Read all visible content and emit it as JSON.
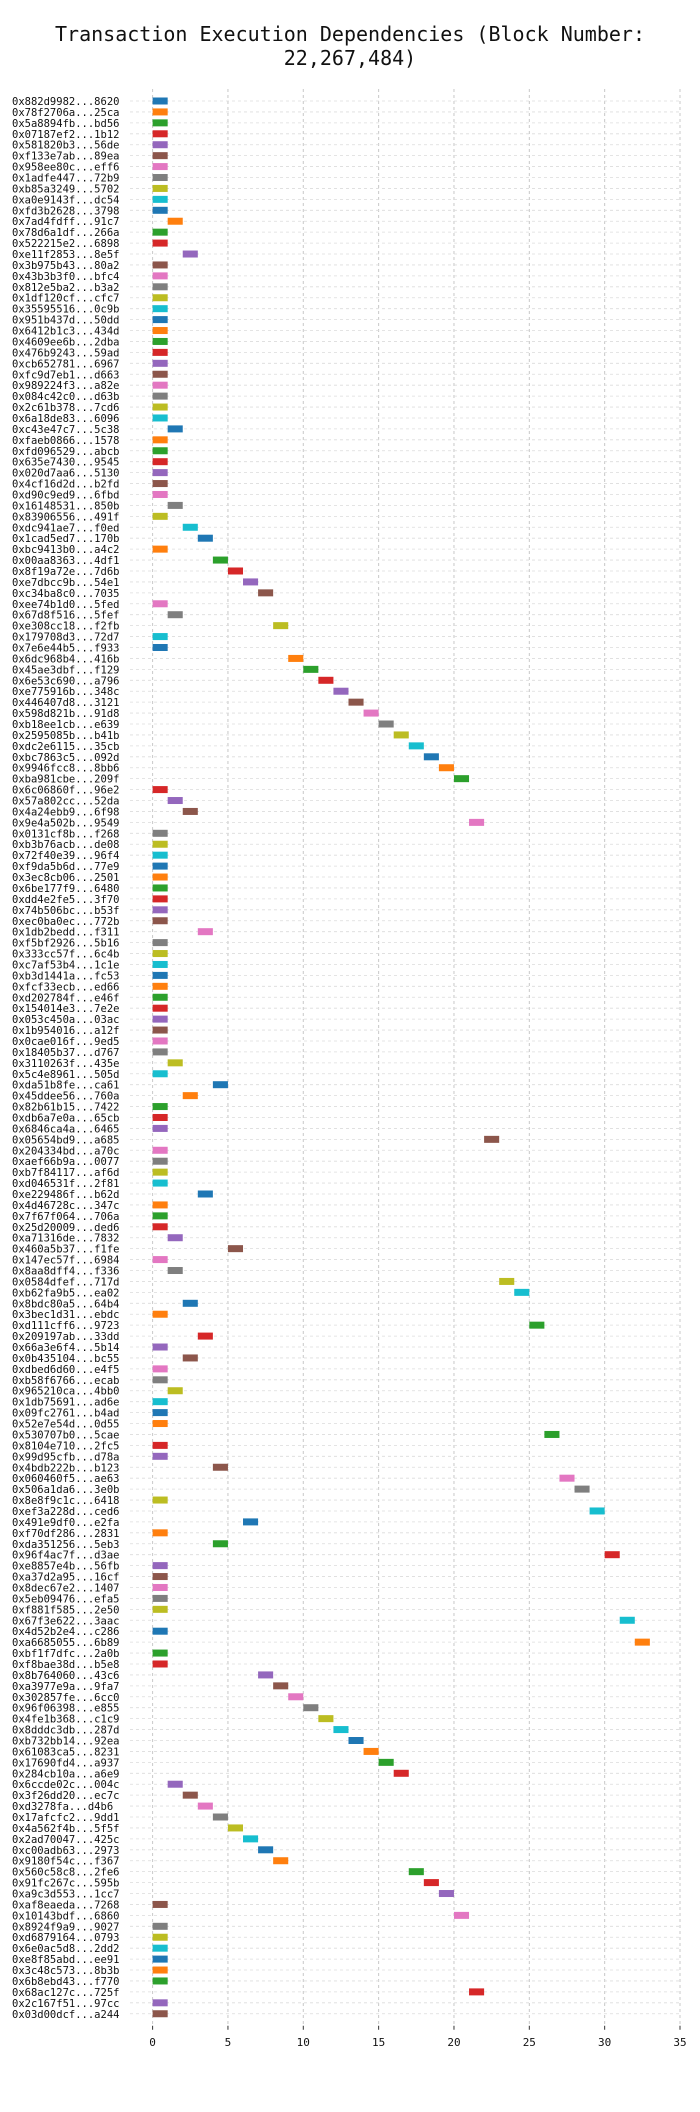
{
  "chart_data": {
    "type": "gantt",
    "title": "Transaction Execution Dependencies (Block Number: 22,267,484)",
    "xlabel": "",
    "ylabel": "",
    "xlim": [
      -1.5,
      35
    ],
    "xticks": [
      0,
      5,
      10,
      15,
      20,
      25,
      30,
      35
    ],
    "grid": true,
    "bar_duration": 1,
    "palette": [
      "#1f77b4",
      "#ff7f0e",
      "#2ca02c",
      "#d62728",
      "#9467bd",
      "#8c564b",
      "#e377c2",
      "#7f7f7f",
      "#bcbd22",
      "#17becf"
    ],
    "transactions": [
      {
        "label": "0x882d9982...8620",
        "start": 0
      },
      {
        "label": "0x78f2706a...25ca",
        "start": 0
      },
      {
        "label": "0x5a8894fb...bd56",
        "start": 0
      },
      {
        "label": "0x07187ef2...1b12",
        "start": 0
      },
      {
        "label": "0x581820b3...56de",
        "start": 0
      },
      {
        "label": "0xf133e7ab...89ea",
        "start": 0
      },
      {
        "label": "0x958ee80c...eff6",
        "start": 0
      },
      {
        "label": "0x1adfe447...72b9",
        "start": 0
      },
      {
        "label": "0xb85a3249...5702",
        "start": 0
      },
      {
        "label": "0xa0e9143f...dc54",
        "start": 0
      },
      {
        "label": "0xfd3b2628...3798",
        "start": 0
      },
      {
        "label": "0x7ad4fdff...91c7",
        "start": 1
      },
      {
        "label": "0x78d6a1df...266a",
        "start": 0
      },
      {
        "label": "0x522215e2...6898",
        "start": 0
      },
      {
        "label": "0xe11f2853...8e5f",
        "start": 2
      },
      {
        "label": "0x3b975b43...80a2",
        "start": 0
      },
      {
        "label": "0x43b3b3f0...bfc4",
        "start": 0
      },
      {
        "label": "0x812e5ba2...b3a2",
        "start": 0
      },
      {
        "label": "0x1df120cf...cfc7",
        "start": 0
      },
      {
        "label": "0x35595516...0c9b",
        "start": 0
      },
      {
        "label": "0x951b437d...50dd",
        "start": 0
      },
      {
        "label": "0x6412b1c3...434d",
        "start": 0
      },
      {
        "label": "0x4609ee6b...2dba",
        "start": 0
      },
      {
        "label": "0x476b9243...59ad",
        "start": 0
      },
      {
        "label": "0xcb652781...6967",
        "start": 0
      },
      {
        "label": "0xfc9d7eb1...d663",
        "start": 0
      },
      {
        "label": "0x989224f3...a82e",
        "start": 0
      },
      {
        "label": "0x084c42c0...d63b",
        "start": 0
      },
      {
        "label": "0x2c61b378...7cd6",
        "start": 0
      },
      {
        "label": "0x6a18de83...6096",
        "start": 0
      },
      {
        "label": "0xc43e47c7...5c38",
        "start": 1
      },
      {
        "label": "0xfaeb0866...1578",
        "start": 0
      },
      {
        "label": "0xfd096529...abcb",
        "start": 0
      },
      {
        "label": "0x635e7430...9545",
        "start": 0
      },
      {
        "label": "0x020d7aa6...5130",
        "start": 0
      },
      {
        "label": "0x4cf16d2d...b2fd",
        "start": 0
      },
      {
        "label": "0xd90c9ed9...6fbd",
        "start": 0
      },
      {
        "label": "0x16148531...850b",
        "start": 1
      },
      {
        "label": "0x83906556...491f",
        "start": 0
      },
      {
        "label": "0xdc941ae7...f0ed",
        "start": 2
      },
      {
        "label": "0x1cad5ed7...170b",
        "start": 3
      },
      {
        "label": "0xbc9413b0...a4c2",
        "start": 0
      },
      {
        "label": "0x00aa8363...4df1",
        "start": 4
      },
      {
        "label": "0x8f19a72e...7d6b",
        "start": 5
      },
      {
        "label": "0xe7dbcc9b...54e1",
        "start": 6
      },
      {
        "label": "0xc34ba8c0...7035",
        "start": 7
      },
      {
        "label": "0xee74b1d0...5fed",
        "start": 0
      },
      {
        "label": "0x67d8f516...5fef",
        "start": 1
      },
      {
        "label": "0xe308cc18...f2fb",
        "start": 8
      },
      {
        "label": "0x179708d3...72d7",
        "start": 0
      },
      {
        "label": "0x7e6e44b5...f933",
        "start": 0
      },
      {
        "label": "0x6dc968b4...416b",
        "start": 9
      },
      {
        "label": "0x45ae3dbf...f129",
        "start": 10
      },
      {
        "label": "0x6e53c690...a796",
        "start": 11
      },
      {
        "label": "0xe775916b...348c",
        "start": 12
      },
      {
        "label": "0x446407d8...3121",
        "start": 13
      },
      {
        "label": "0x598d821b...91d8",
        "start": 14
      },
      {
        "label": "0xb18ee1cb...e639",
        "start": 15
      },
      {
        "label": "0x2595085b...b41b",
        "start": 16
      },
      {
        "label": "0xdc2e6115...35cb",
        "start": 17
      },
      {
        "label": "0xbc7863c5...092d",
        "start": 18
      },
      {
        "label": "0x9946fcc8...8bb6",
        "start": 19
      },
      {
        "label": "0xba981cbe...209f",
        "start": 20
      },
      {
        "label": "0x6c06860f...96e2",
        "start": 0
      },
      {
        "label": "0x57a802cc...52da",
        "start": 1
      },
      {
        "label": "0x4a24ebb9...6f98",
        "start": 2
      },
      {
        "label": "0x9e4a502b...9549",
        "start": 21
      },
      {
        "label": "0x0131cf8b...f268",
        "start": 0
      },
      {
        "label": "0xb3b76acb...de08",
        "start": 0
      },
      {
        "label": "0x72f40e39...96f4",
        "start": 0
      },
      {
        "label": "0xf9da5b6d...77e9",
        "start": 0
      },
      {
        "label": "0x3ec8cb06...2501",
        "start": 0
      },
      {
        "label": "0x6be177f9...6480",
        "start": 0
      },
      {
        "label": "0xdd4e2fe5...3f70",
        "start": 0
      },
      {
        "label": "0x74b506bc...b53f",
        "start": 0
      },
      {
        "label": "0xec0ba0ec...772b",
        "start": 0
      },
      {
        "label": "0x1db2bedd...f311",
        "start": 3
      },
      {
        "label": "0xf5bf2926...5b16",
        "start": 0
      },
      {
        "label": "0x333cc57f...6c4b",
        "start": 0
      },
      {
        "label": "0xc7af53b4...1c1e",
        "start": 0
      },
      {
        "label": "0xb3d1441a...fc53",
        "start": 0
      },
      {
        "label": "0xfcf33ecb...ed66",
        "start": 0
      },
      {
        "label": "0xd202784f...e46f",
        "start": 0
      },
      {
        "label": "0x154014e3...7e2e",
        "start": 0
      },
      {
        "label": "0x053c450a...03ac",
        "start": 0
      },
      {
        "label": "0x1b954016...a12f",
        "start": 0
      },
      {
        "label": "0x0cae016f...9ed5",
        "start": 0
      },
      {
        "label": "0x18405b37...d767",
        "start": 0
      },
      {
        "label": "0x3110263f...435e",
        "start": 1
      },
      {
        "label": "0x5c4e8961...505d",
        "start": 0
      },
      {
        "label": "0xda51b8fe...ca61",
        "start": 4
      },
      {
        "label": "0x45ddee56...760a",
        "start": 2
      },
      {
        "label": "0x82b61b15...7422",
        "start": 0
      },
      {
        "label": "0xdb6a7e0a...65cb",
        "start": 0
      },
      {
        "label": "0x6846ca4a...6465",
        "start": 0
      },
      {
        "label": "0x05654bd9...a685",
        "start": 22
      },
      {
        "label": "0x204334bd...a70c",
        "start": 0
      },
      {
        "label": "0xaef66b9a...0077",
        "start": 0
      },
      {
        "label": "0xb7f84117...af6d",
        "start": 0
      },
      {
        "label": "0xd046531f...2f81",
        "start": 0
      },
      {
        "label": "0xe229486f...b62d",
        "start": 3
      },
      {
        "label": "0x4d46728c...347c",
        "start": 0
      },
      {
        "label": "0x7f67f064...706a",
        "start": 0
      },
      {
        "label": "0x25d20009...ded6",
        "start": 0
      },
      {
        "label": "0xa71316de...7832",
        "start": 1
      },
      {
        "label": "0x460a5b37...f1fe",
        "start": 5
      },
      {
        "label": "0x147ec57f...6984",
        "start": 0
      },
      {
        "label": "0x8aa8dff4...f336",
        "start": 1
      },
      {
        "label": "0x0584dfef...717d",
        "start": 23
      },
      {
        "label": "0xb62fa9b5...ea02",
        "start": 24
      },
      {
        "label": "0x8bdc80a5...64b4",
        "start": 2
      },
      {
        "label": "0x3bec1d31...ebdc",
        "start": 0
      },
      {
        "label": "0xd111cff6...9723",
        "start": 25
      },
      {
        "label": "0x209197ab...33dd",
        "start": 3
      },
      {
        "label": "0x66a3e6f4...5b14",
        "start": 0
      },
      {
        "label": "0x0b435104...bc55",
        "start": 2
      },
      {
        "label": "0xdbed6d60...e4f5",
        "start": 0
      },
      {
        "label": "0xb58f6766...ecab",
        "start": 0
      },
      {
        "label": "0x965210ca...4bb0",
        "start": 1
      },
      {
        "label": "0x1db75691...ad6e",
        "start": 0
      },
      {
        "label": "0x09fc2761...b4ad",
        "start": 0
      },
      {
        "label": "0x52e7e54d...0d55",
        "start": 0
      },
      {
        "label": "0x530707b0...5cae",
        "start": 26
      },
      {
        "label": "0x8104e710...2fc5",
        "start": 0
      },
      {
        "label": "0x99d95cfb...d78a",
        "start": 0
      },
      {
        "label": "0x4bdb222b...b123",
        "start": 4
      },
      {
        "label": "0x060460f5...ae63",
        "start": 27
      },
      {
        "label": "0x506a1da6...3e0b",
        "start": 28
      },
      {
        "label": "0x8e8f9c1c...6418",
        "start": 0
      },
      {
        "label": "0xef3a228d...ced6",
        "start": 29
      },
      {
        "label": "0x491e9df0...e2fa",
        "start": 6
      },
      {
        "label": "0xf70df286...2831",
        "start": 0
      },
      {
        "label": "0xda351256...5eb3",
        "start": 4
      },
      {
        "label": "0x96f4ac7f...d3ae",
        "start": 30
      },
      {
        "label": "0xe8857e4b...56fb",
        "start": 0
      },
      {
        "label": "0xa37d2a95...16cf",
        "start": 0
      },
      {
        "label": "0x8dec67e2...1407",
        "start": 0
      },
      {
        "label": "0x5eb09476...efa5",
        "start": 0
      },
      {
        "label": "0xf881f585...2e50",
        "start": 0
      },
      {
        "label": "0x67f3e622...3aac",
        "start": 31
      },
      {
        "label": "0x4d52b2e4...c286",
        "start": 0
      },
      {
        "label": "0xa6685055...6b89",
        "start": 32
      },
      {
        "label": "0xbf1f7dfc...2a0b",
        "start": 0
      },
      {
        "label": "0xf8bae38d...b5e8",
        "start": 0
      },
      {
        "label": "0x8b764060...43c6",
        "start": 7
      },
      {
        "label": "0xa3977e9a...9fa7",
        "start": 8
      },
      {
        "label": "0x302857fe...6cc0",
        "start": 9
      },
      {
        "label": "0x96f06398...e855",
        "start": 10
      },
      {
        "label": "0x4fe1b368...c1c9",
        "start": 11
      },
      {
        "label": "0x8dddc3db...287d",
        "start": 12
      },
      {
        "label": "0xb732bb14...92ea",
        "start": 13
      },
      {
        "label": "0x61083ca5...8231",
        "start": 14
      },
      {
        "label": "0x17690fd4...a937",
        "start": 15
      },
      {
        "label": "0x284cb10a...a6e9",
        "start": 16
      },
      {
        "label": "0x6ccde02c...004c",
        "start": 1
      },
      {
        "label": "0x3f26dd20...ec7c",
        "start": 2
      },
      {
        "label": "0xd3278fa...d4b6",
        "start": 3
      },
      {
        "label": "0x17afcfc2...9dd1",
        "start": 4
      },
      {
        "label": "0x4a562f4b...5f5f",
        "start": 5
      },
      {
        "label": "0x2ad70047...425c",
        "start": 6
      },
      {
        "label": "0xc00adb63...2973",
        "start": 7
      },
      {
        "label": "0x9180f54c...f367",
        "start": 8
      },
      {
        "label": "0x560c58c8...2fe6",
        "start": 17
      },
      {
        "label": "0x91fc267c...595b",
        "start": 18
      },
      {
        "label": "0xa9c3d553...1cc7",
        "start": 19
      },
      {
        "label": "0xaf8eaeda...7268",
        "start": 0
      },
      {
        "label": "0x10143bdf...6860",
        "start": 20
      },
      {
        "label": "0x8924f9a9...9027",
        "start": 0
      },
      {
        "label": "0xd6879164...0793",
        "start": 0
      },
      {
        "label": "0x6e0ac5d8...2dd2",
        "start": 0
      },
      {
        "label": "0xe8f85abd...ee91",
        "start": 0
      },
      {
        "label": "0x3c48c573...8b3b",
        "start": 0
      },
      {
        "label": "0x6b8ebd43...f770",
        "start": 0
      },
      {
        "label": "0x68ac127c...725f",
        "start": 21
      },
      {
        "label": "0x2c167f51...97cc",
        "start": 0
      },
      {
        "label": "0x03d00dcf...a244",
        "start": 0
      }
    ]
  }
}
